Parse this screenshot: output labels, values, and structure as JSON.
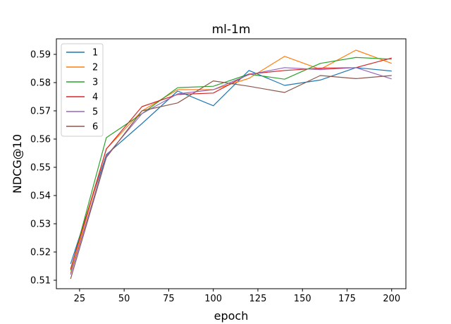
{
  "chart_data": {
    "type": "line",
    "title": "ml-1m",
    "xlabel": "epoch",
    "ylabel": "NDCG@10",
    "xlim": [
      12,
      208
    ],
    "ylim": [
      0.507,
      0.5955
    ],
    "xticks": [
      25,
      50,
      75,
      100,
      125,
      150,
      175,
      200
    ],
    "yticks": [
      0.51,
      0.52,
      0.53,
      0.54,
      0.55,
      0.56,
      0.57,
      0.58,
      0.59
    ],
    "x": [
      20,
      40,
      60,
      80,
      100,
      120,
      140,
      160,
      180,
      200
    ],
    "legend_position": "top-left",
    "grid": false,
    "series": [
      {
        "name": "1",
        "color": "#1f77b4",
        "values": [
          0.5158,
          0.5545,
          0.5655,
          0.577,
          0.5718,
          0.5843,
          0.579,
          0.5809,
          0.5853,
          0.5841
        ]
      },
      {
        "name": "2",
        "color": "#ff7f0e",
        "values": [
          0.5125,
          0.5565,
          0.57,
          0.5775,
          0.5775,
          0.5815,
          0.5893,
          0.5847,
          0.5915,
          0.5868
        ]
      },
      {
        "name": "3",
        "color": "#2ca02c",
        "values": [
          0.5135,
          0.5605,
          0.569,
          0.5782,
          0.5787,
          0.583,
          0.5812,
          0.5868,
          0.5889,
          0.5883
        ]
      },
      {
        "name": "4",
        "color": "#d62728",
        "values": [
          0.514,
          0.5565,
          0.5715,
          0.5758,
          0.5763,
          0.583,
          0.5843,
          0.5851,
          0.5853,
          0.5887
        ]
      },
      {
        "name": "5",
        "color": "#9467bd",
        "values": [
          0.512,
          0.554,
          0.569,
          0.576,
          0.5775,
          0.5828,
          0.5853,
          0.5846,
          0.5853,
          0.5813
        ]
      },
      {
        "name": "6",
        "color": "#8c564b",
        "values": [
          0.5105,
          0.5535,
          0.57,
          0.5728,
          0.5806,
          0.5787,
          0.5765,
          0.5825,
          0.5814,
          0.5825
        ]
      }
    ]
  }
}
